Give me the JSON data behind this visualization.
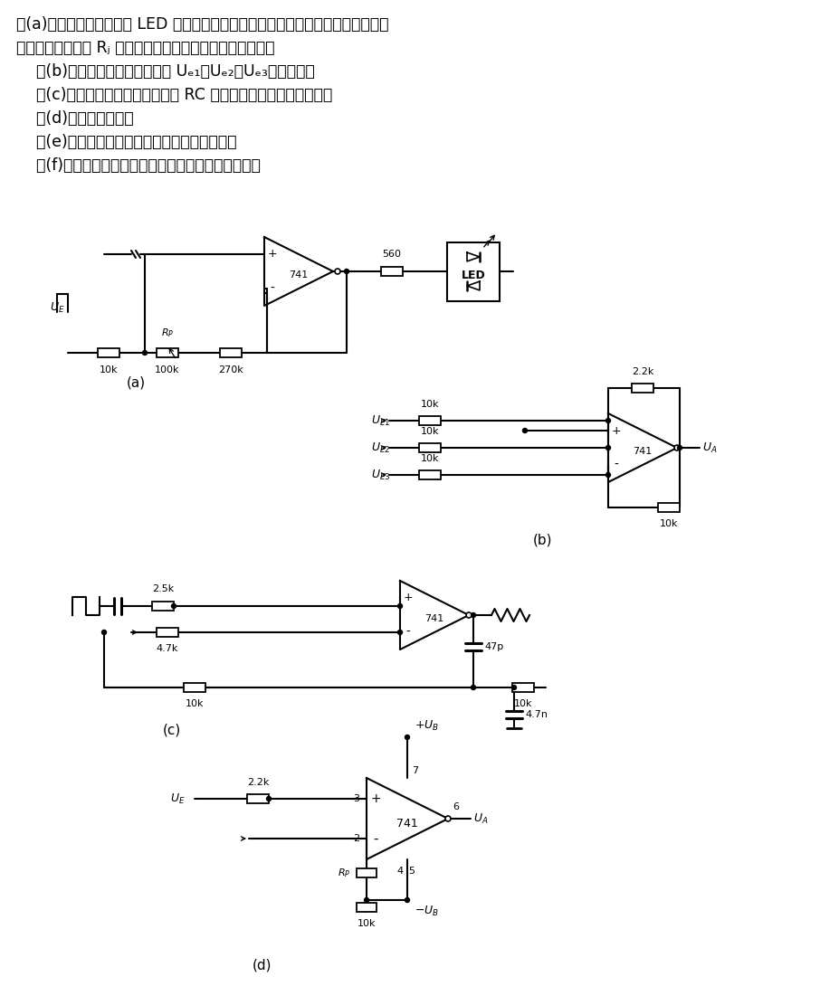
{
  "background_color": "#ffffff",
  "figsize": [
    9.28,
    11.11
  ],
  "dpi": 100,
  "text_block": [
    "图(a)为带两个发光二极管 LED 的极性显示器，可以鉴别输入信号极性或比较信号的",
    "大小。利用电位器 Rⱼ 可以调整两发光二极管显示的灵敏度。",
    "    图(b)电路用于对几个输入信号 Uₑ₁、Uₑ₂、Uₑ₃进行相加。",
    "    图(c)电路为精密积分器电路，其 RC 网络必须与输入信号相匹配。",
    "    图(d)为比较器电路。",
    "    图(e)为有较高频率和对称输入的比较器电路。",
    "    图(f)为在输入端接有电压跟随器的精密比较器电路。"
  ]
}
